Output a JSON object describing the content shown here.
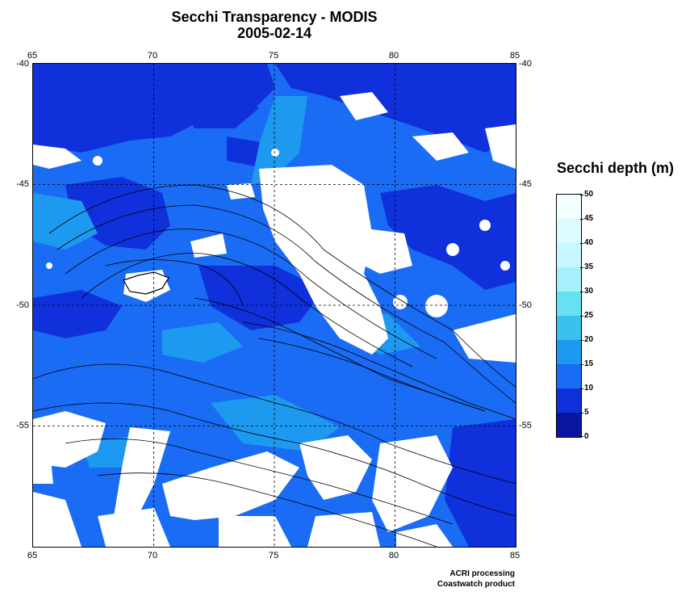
{
  "title": "Secchi Transparency - MODIS",
  "date": "2005-02-14",
  "map": {
    "lon_range": [
      65,
      85
    ],
    "lat_range": [
      -60,
      -40
    ],
    "lon_ticks": [
      "65",
      "70",
      "75",
      "80",
      "85"
    ],
    "lat_ticks": [
      "-40",
      "-45",
      "-50",
      "-55"
    ],
    "gridlines": "dashed",
    "cloud_mask_color": "#ffffff"
  },
  "legend": {
    "title": "Secchi depth (m)",
    "ticks": [
      "50",
      "45",
      "40",
      "35",
      "30",
      "25",
      "20",
      "15",
      "10",
      "5",
      "0"
    ],
    "colors_top_to_bottom": [
      "#f2ffff",
      "#dcfbff",
      "#c8f8ff",
      "#a6f0fb",
      "#66e0f2",
      "#38c2ec",
      "#1d9af0",
      "#1a6cf4",
      "#1030dc",
      "#0a14a0"
    ]
  },
  "credits": {
    "line1": "ACRI processing",
    "line2": "Coastwatch product"
  }
}
